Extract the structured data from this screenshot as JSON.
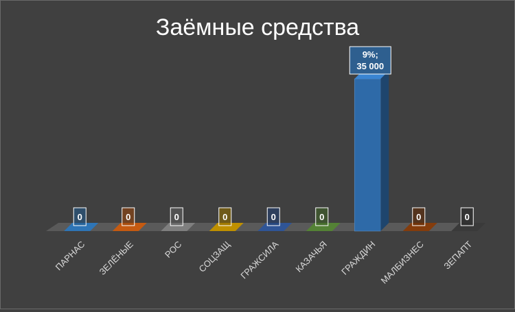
{
  "chart_data": {
    "type": "bar",
    "title": "Заёмные средства",
    "categories": [
      "ПАРНАС",
      "ЗЕЛЁНЫЕ",
      "РОС",
      "СОЦЗАЩ",
      "ГРАЖСИЛА",
      "КАЗАЧЬЯ",
      "ГРАЖДИН",
      "МАЛБИЗНЕС",
      "ЗЕПАПТ"
    ],
    "values": [
      0,
      0,
      0,
      0,
      0,
      0,
      35000,
      0,
      0
    ],
    "data_labels": [
      "0",
      "0",
      "0",
      "0",
      "0",
      "0",
      "9%;\n35 000",
      "0",
      "0"
    ],
    "colors": [
      "#2e75b6",
      "#c55a11",
      "#7f7f7f",
      "#bf9000",
      "#2f5597",
      "#548235",
      "#2e6aa8",
      "#843c0c",
      "#3a3a3a"
    ],
    "xlabel": "",
    "ylabel": "",
    "ylim": [
      0,
      35000
    ],
    "grid": false,
    "legend": "none",
    "style": "3d-column"
  }
}
